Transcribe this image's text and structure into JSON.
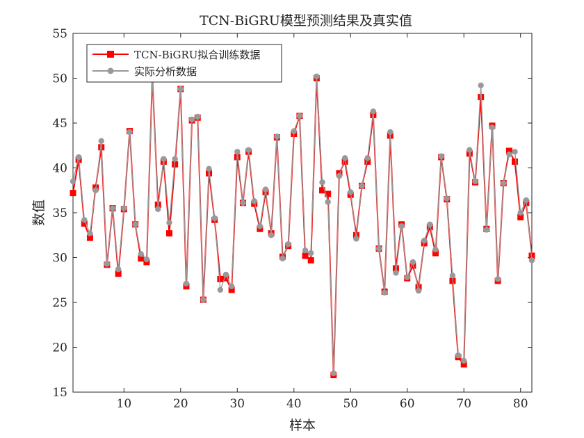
{
  "chart_data": {
    "type": "line",
    "title": "TCN-BiGRU模型预测结果及真实值",
    "xlabel": "样本",
    "ylabel": "数值",
    "xlim": [
      1,
      82
    ],
    "ylim": [
      15,
      55
    ],
    "xticks": [
      10,
      20,
      30,
      40,
      50,
      60,
      70,
      80
    ],
    "yticks": [
      15,
      20,
      25,
      30,
      35,
      40,
      45,
      50,
      55
    ],
    "grid": false,
    "legend_position": "top-left",
    "x": [
      1,
      2,
      3,
      4,
      5,
      6,
      7,
      8,
      9,
      10,
      11,
      12,
      13,
      14,
      15,
      16,
      17,
      18,
      19,
      20,
      21,
      22,
      23,
      24,
      25,
      26,
      27,
      28,
      29,
      30,
      31,
      32,
      33,
      34,
      35,
      36,
      37,
      38,
      39,
      40,
      41,
      42,
      43,
      44,
      45,
      46,
      47,
      48,
      49,
      50,
      51,
      52,
      53,
      54,
      55,
      56,
      57,
      58,
      59,
      60,
      61,
      62,
      63,
      64,
      65,
      66,
      67,
      68,
      69,
      70,
      71,
      72,
      73,
      74,
      75,
      76,
      77,
      78,
      79,
      80,
      81,
      82
    ],
    "series": [
      {
        "name": "TCN-BiGRU拟合训练数据",
        "color": "#ff0000",
        "marker": "square",
        "values": [
          37.2,
          40.9,
          33.8,
          32.2,
          37.8,
          42.3,
          29.2,
          35.5,
          28.2,
          35.4,
          44.1,
          33.7,
          29.9,
          29.5,
          50.2,
          35.9,
          40.7,
          32.7,
          40.4,
          48.8,
          26.8,
          45.3,
          45.6,
          25.3,
          39.4,
          34.2,
          27.6,
          27.7,
          26.4,
          41.2,
          36.1,
          41.8,
          36.0,
          33.2,
          37.3,
          32.7,
          43.4,
          30.1,
          31.3,
          43.8,
          45.8,
          30.2,
          29.7,
          50.0,
          37.5,
          37.1,
          16.9,
          39.4,
          40.7,
          37.0,
          32.5,
          38.0,
          40.7,
          45.9,
          31.0,
          26.2,
          43.6,
          28.8,
          33.7,
          27.7,
          29.1,
          26.7,
          31.6,
          33.4,
          30.5,
          41.2,
          36.5,
          27.4,
          18.9,
          18.1,
          41.6,
          38.4,
          47.9,
          33.2,
          44.7,
          27.4,
          38.3,
          41.9,
          40.7,
          34.5,
          36.1,
          30.2
        ]
      },
      {
        "name": "实际分析数据",
        "color": "#999999",
        "marker": "circle",
        "values": [
          38.5,
          41.2,
          34.2,
          32.7,
          37.5,
          43.0,
          29.3,
          35.5,
          28.7,
          35.5,
          44.0,
          33.7,
          30.4,
          29.8,
          50.1,
          35.4,
          41.0,
          33.9,
          41.0,
          48.8,
          27.1,
          45.4,
          45.7,
          25.3,
          39.9,
          34.4,
          26.4,
          28.1,
          26.8,
          41.8,
          36.1,
          42.0,
          36.3,
          33.5,
          37.6,
          32.5,
          43.5,
          29.9,
          31.5,
          44.1,
          45.8,
          30.8,
          30.5,
          50.2,
          38.4,
          36.2,
          17.1,
          39.1,
          41.1,
          37.3,
          32.1,
          38.0,
          41.1,
          46.3,
          31.0,
          26.1,
          44.0,
          28.3,
          33.5,
          27.8,
          29.5,
          26.3,
          31.9,
          33.7,
          30.9,
          41.3,
          36.6,
          28.0,
          19.1,
          18.5,
          42.0,
          38.5,
          49.2,
          33.1,
          44.5,
          27.6,
          38.3,
          41.5,
          41.8,
          35.0,
          36.4,
          29.7
        ]
      }
    ]
  }
}
